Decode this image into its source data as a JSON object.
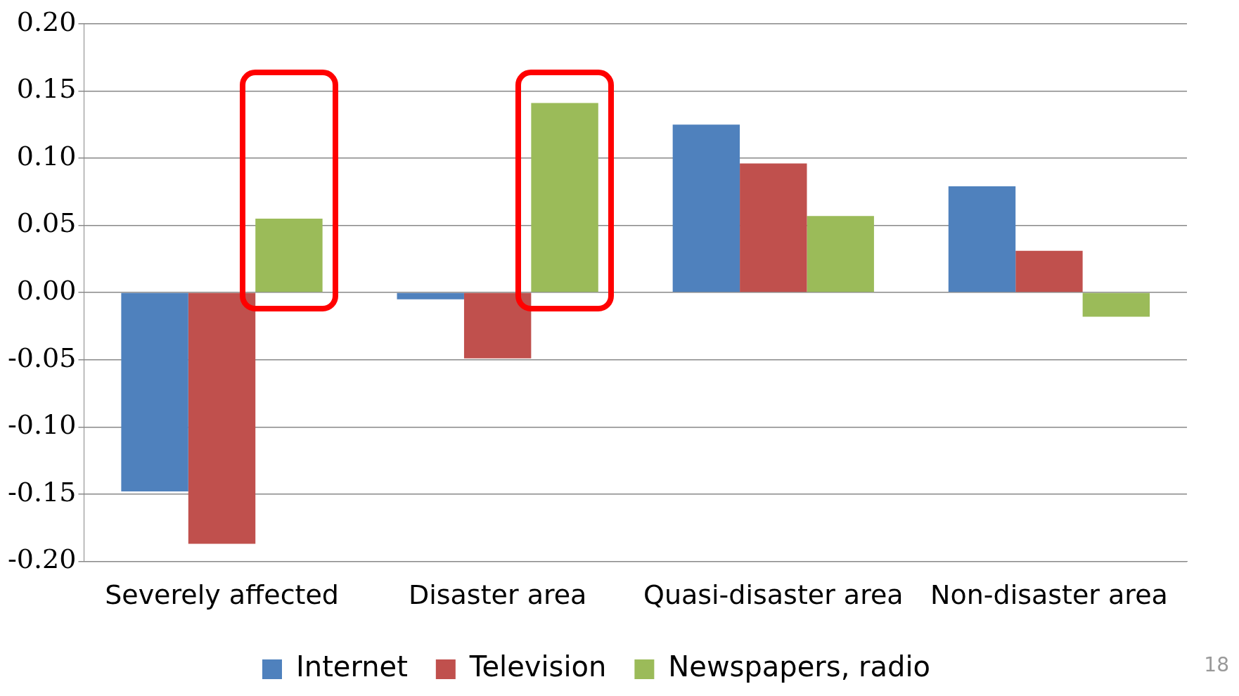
{
  "chart_data": {
    "type": "bar",
    "categories": [
      "Severely affected",
      "Disaster area",
      "Quasi-disaster area",
      "Non-disaster area"
    ],
    "series": [
      {
        "name": "Internet",
        "color": "#4f81bd",
        "values": [
          -0.148,
          -0.005,
          0.125,
          0.079
        ]
      },
      {
        "name": "Television",
        "color": "#c0504d",
        "values": [
          -0.187,
          -0.049,
          0.096,
          0.031
        ]
      },
      {
        "name": "Newspapers, radio",
        "color": "#9bbb59",
        "values": [
          0.055,
          0.141,
          0.057,
          -0.018
        ]
      }
    ],
    "ylim": [
      -0.2,
      0.2
    ],
    "yticks": [
      {
        "value": -0.2,
        "label": "-0.20"
      },
      {
        "value": -0.15,
        "label": "-0.15"
      },
      {
        "value": -0.1,
        "label": "-0.10"
      },
      {
        "value": -0.05,
        "label": "-0.05"
      },
      {
        "value": 0,
        "label": "0.00"
      },
      {
        "value": 0.05,
        "label": "0.05"
      },
      {
        "value": 0.1,
        "label": "0.10"
      },
      {
        "value": 0.15,
        "label": "0.15"
      },
      {
        "value": 0.2,
        "label": "0.20"
      }
    ],
    "grid": "y",
    "legend": "bottom",
    "annotations": [
      "18"
    ]
  }
}
